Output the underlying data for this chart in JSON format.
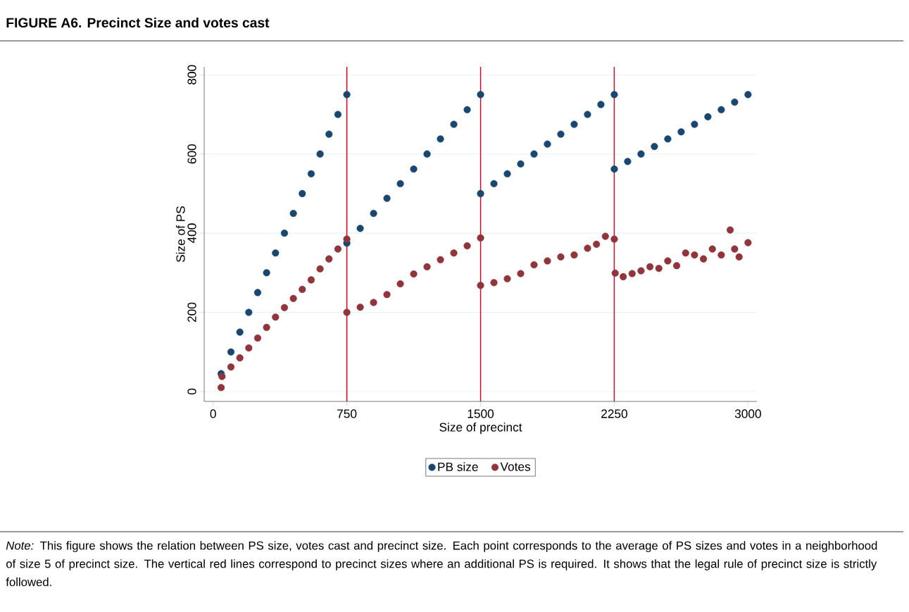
{
  "chart_data": {
    "type": "scatter",
    "title": "FIGURE A6. Precinct Size and votes cast",
    "xlabel": "Size of precinct",
    "ylabel": "Size of PS",
    "xlim": [
      -50,
      3050
    ],
    "ylim": [
      -25,
      820
    ],
    "xticks": [
      0,
      750,
      1500,
      2250,
      3000
    ],
    "yticks": [
      0,
      200,
      400,
      600,
      800
    ],
    "grid": "y",
    "legend": "bottom",
    "marker": "circle",
    "ref_lines": [
      {
        "axis": "x",
        "value": 750,
        "color": "#c8102e"
      },
      {
        "axis": "x",
        "value": 1500,
        "color": "#c8102e"
      },
      {
        "axis": "x",
        "value": 2250,
        "color": "#c8102e"
      }
    ],
    "series": [
      {
        "name": "PB size",
        "color": "#1a476f",
        "x": [
          45,
          100,
          150,
          200,
          250,
          300,
          350,
          400,
          450,
          500,
          550,
          600,
          650,
          700,
          750,
          750,
          825,
          900,
          975,
          1050,
          1125,
          1200,
          1275,
          1350,
          1425,
          1500,
          1500,
          1575,
          1650,
          1725,
          1800,
          1875,
          1950,
          2025,
          2100,
          2175,
          2250,
          2250,
          2325,
          2400,
          2475,
          2550,
          2625,
          2700,
          2775,
          2850,
          2925,
          3000
        ],
        "values": [
          45,
          100,
          150,
          200,
          250,
          300,
          350,
          400,
          450,
          500,
          550,
          600,
          650,
          700,
          750,
          375,
          412,
          450,
          488,
          525,
          562,
          600,
          638,
          675,
          712,
          750,
          500,
          525,
          550,
          575,
          600,
          625,
          650,
          675,
          700,
          725,
          750,
          562,
          581,
          600,
          619,
          638,
          656,
          675,
          694,
          712,
          731,
          750
        ]
      },
      {
        "name": "Votes",
        "color": "#90353b",
        "x": [
          45,
          50,
          100,
          150,
          200,
          250,
          300,
          350,
          400,
          450,
          500,
          550,
          600,
          650,
          700,
          750,
          750,
          825,
          900,
          975,
          1050,
          1125,
          1200,
          1275,
          1350,
          1425,
          1500,
          1500,
          1575,
          1650,
          1725,
          1800,
          1875,
          1950,
          2025,
          2100,
          2150,
          2200,
          2250,
          2255,
          2300,
          2350,
          2400,
          2450,
          2500,
          2550,
          2600,
          2650,
          2700,
          2750,
          2800,
          2850,
          2900,
          2925,
          2950,
          3000
        ],
        "values": [
          10,
          38,
          62,
          85,
          110,
          135,
          162,
          188,
          212,
          235,
          258,
          282,
          310,
          335,
          360,
          385,
          200,
          213,
          225,
          245,
          272,
          297,
          315,
          333,
          350,
          368,
          388,
          268,
          275,
          285,
          298,
          320,
          330,
          340,
          345,
          362,
          372,
          392,
          385,
          299,
          290,
          298,
          305,
          315,
          311,
          330,
          318,
          350,
          345,
          335,
          360,
          345,
          408,
          360,
          340,
          376
        ]
      }
    ],
    "annotations": [
      "*Note:* This figure shows the relation between PS size, votes cast and precinct size. Each point corresponds to the average of PS sizes and votes in a neighborhood of size 5 of precinct size. The vertical red lines correspond to precinct sizes where an additional PS is required. It shows that the legal rule of precinct size is strictly followed."
    ]
  }
}
